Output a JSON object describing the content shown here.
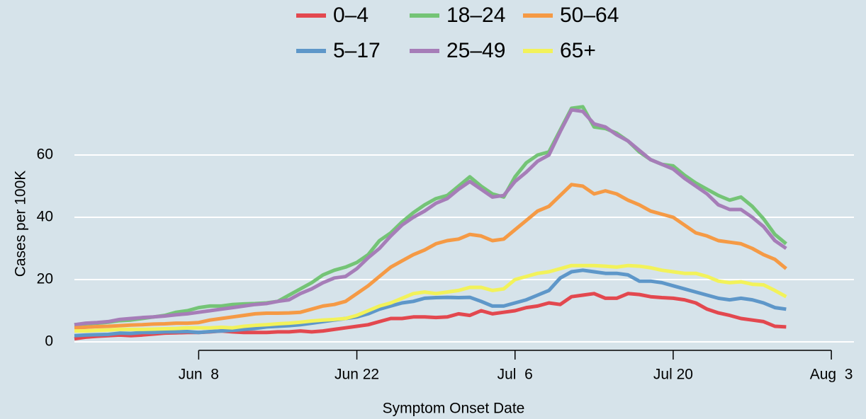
{
  "chart_data": {
    "type": "line",
    "x_label": "Symptom Onset Date",
    "y_label": "Cases per 100K",
    "x": [
      "May 28",
      "May 29",
      "May 30",
      "May 31",
      "Jun 1",
      "Jun 2",
      "Jun 3",
      "Jun 4",
      "Jun 5",
      "Jun 6",
      "Jun 7",
      "Jun 8",
      "Jun 9",
      "Jun 10",
      "Jun 11",
      "Jun 12",
      "Jun 13",
      "Jun 14",
      "Jun 15",
      "Jun 16",
      "Jun 17",
      "Jun 18",
      "Jun 19",
      "Jun 20",
      "Jun 21",
      "Jun 22",
      "Jun 23",
      "Jun 24",
      "Jun 25",
      "Jun 26",
      "Jun 27",
      "Jun 28",
      "Jun 29",
      "Jun 30",
      "Jul 1",
      "Jul 2",
      "Jul 3",
      "Jul 4",
      "Jul 5",
      "Jul 6",
      "Jul 7",
      "Jul 8",
      "Jul 9",
      "Jul 10",
      "Jul 11",
      "Jul 12",
      "Jul 13",
      "Jul 14",
      "Jul 15",
      "Jul 16",
      "Jul 17",
      "Jul 18",
      "Jul 19",
      "Jul 20",
      "Jul 21",
      "Jul 22",
      "Jul 23",
      "Jul 24",
      "Jul 25",
      "Jul 26",
      "Jul 27",
      "Jul 28",
      "Jul 29",
      "Jul 30"
    ],
    "xlim": [
      "May 28",
      "Aug 5"
    ],
    "xticks": [
      {
        "value": "Jun 8",
        "label": "Jun  8"
      },
      "Jun 22",
      {
        "value": "Jul 6",
        "label": "Jul  6"
      },
      "Jul 20",
      {
        "value": "Aug 3",
        "label": "Aug  3"
      }
    ],
    "ylim": [
      -2,
      80
    ],
    "yticks": [
      0,
      20,
      40,
      60
    ],
    "grid": true,
    "series": [
      {
        "name": "0–4",
        "color": "#e3484f",
        "values": [
          1,
          1.5,
          1.8,
          2,
          2.2,
          2,
          2.2,
          2.5,
          2.8,
          2.9,
          3,
          3,
          3.2,
          3.5,
          3.2,
          3,
          3,
          3,
          3.2,
          3.2,
          3.5,
          3.2,
          3.5,
          4,
          4.5,
          5,
          5.5,
          6.5,
          7.5,
          7.5,
          8,
          8,
          7.8,
          8,
          9,
          8.5,
          10,
          9,
          9.5,
          10,
          11,
          11.5,
          12.5,
          12,
          14.5,
          15,
          15.5,
          14,
          14,
          15.5,
          15.2,
          14.5,
          14.2,
          14,
          13.5,
          12.5,
          10.5,
          9.3,
          8.5,
          7.5,
          7,
          6.5,
          5,
          4.8
        ]
      },
      {
        "name": "5–17",
        "color": "#5e97c9",
        "values": [
          2,
          2.2,
          2.3,
          2.4,
          2.8,
          2.7,
          3,
          3,
          3.2,
          3.2,
          3.3,
          3,
          3.3,
          3.5,
          3.7,
          4,
          4.3,
          4.8,
          5,
          5.2,
          5.5,
          6,
          6.5,
          7,
          7.5,
          8,
          9,
          10.5,
          11.5,
          12.5,
          13,
          14,
          14.2,
          14.3,
          14.2,
          14.3,
          13,
          11.5,
          11.5,
          12.5,
          13.5,
          15,
          16.5,
          20.5,
          22.5,
          23,
          22.5,
          22,
          22,
          21.5,
          19.5,
          19.5,
          19,
          18,
          17,
          16,
          15,
          14,
          13.5,
          14,
          13.5,
          12.5,
          11,
          10.5
        ]
      },
      {
        "name": "18–24",
        "color": "#74c476",
        "values": [
          5.5,
          5.8,
          6,
          6.3,
          6.8,
          7,
          7.5,
          8,
          8.5,
          9.5,
          10,
          11,
          11.5,
          11.5,
          12,
          12.2,
          12.3,
          12.5,
          13,
          15,
          17,
          19,
          21.5,
          23,
          24,
          25.5,
          28,
          32.5,
          35,
          38.5,
          41.5,
          44,
          46,
          47,
          50,
          53,
          50,
          47.5,
          46.5,
          53,
          57.5,
          60,
          61,
          68,
          75,
          75.5,
          69,
          68.5,
          67,
          64.5,
          61,
          58.5,
          57,
          56.5,
          53.5,
          51,
          49,
          47,
          45.5,
          46.5,
          43.5,
          39.5,
          34.5,
          31.5
        ]
      },
      {
        "name": "25–49",
        "color": "#a67db8",
        "values": [
          5.5,
          6,
          6.2,
          6.5,
          7.2,
          7.5,
          7.8,
          8,
          8.3,
          8.7,
          9,
          9.5,
          10,
          10.5,
          11,
          11.5,
          12,
          12.3,
          13,
          13.5,
          15.5,
          17,
          19,
          20.5,
          21,
          23.5,
          27,
          30,
          34,
          37.5,
          40,
          42,
          44.5,
          46,
          49,
          51.5,
          49,
          46.5,
          47,
          51.5,
          54.5,
          58,
          60,
          67.5,
          74.5,
          74,
          70,
          69,
          66.5,
          64.5,
          61.5,
          58.5,
          57,
          55.5,
          52.5,
          50,
          47.5,
          44,
          42.5,
          42.5,
          40,
          37,
          32.5,
          30
        ]
      },
      {
        "name": "50–64",
        "color": "#f59a45",
        "values": [
          4.5,
          4.7,
          4.9,
          5,
          5.2,
          5.4,
          5.5,
          5.7,
          5.8,
          6,
          6,
          6.2,
          7,
          7.5,
          8,
          8.5,
          9,
          9.2,
          9.2,
          9.3,
          9.5,
          10.5,
          11.5,
          12,
          13,
          15.5,
          18,
          21,
          24,
          26,
          28,
          29.5,
          31.5,
          32.5,
          33,
          34.5,
          34,
          32.5,
          33,
          36,
          39,
          42,
          43.5,
          47,
          50.5,
          50,
          47.5,
          48.5,
          47.5,
          45.5,
          44,
          42,
          41,
          40,
          37.5,
          35,
          34,
          32.5,
          32,
          31.5,
          30,
          28,
          26.5,
          23.5
        ]
      },
      {
        "name": "65+",
        "color": "#f2f25a",
        "values": [
          3.5,
          3.5,
          3.7,
          3.8,
          4,
          4,
          4,
          4.1,
          4.2,
          4.3,
          4.5,
          4.5,
          4.5,
          4.7,
          4.5,
          5,
          5.3,
          5.5,
          5.8,
          6,
          6.3,
          6.7,
          7,
          7.2,
          7.5,
          8.5,
          10,
          11.5,
          12.5,
          14,
          15.5,
          16,
          15.5,
          16,
          16.5,
          17.5,
          17.5,
          16.5,
          17,
          20,
          21,
          22,
          22.5,
          23.5,
          24.5,
          24.5,
          24.5,
          24.3,
          24,
          24.5,
          24.3,
          23.8,
          23,
          22.5,
          22,
          22,
          21,
          19.5,
          19,
          19.3,
          18.5,
          18.3,
          16.5,
          14.5
        ]
      }
    ]
  }
}
